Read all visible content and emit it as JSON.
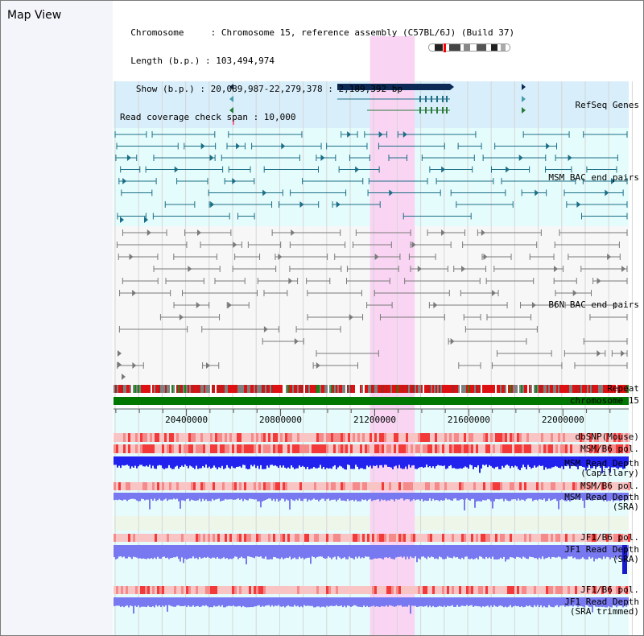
{
  "title": "Map View",
  "info": {
    "lines": [
      "  Chromosome     : Chromosome 15, reference assembly (C57BL/6J) (Build 37)",
      "  Length (b.p.) : 103,494,974",
      "   Show (b.p.) : 20,089,987-22,279,378 : 2,189,392 bp",
      "Read coverage check span : 10,000"
    ]
  },
  "tracks": {
    "refseq": {
      "label": "RefSeq Genes",
      "color": "#0000cc"
    },
    "msm_bac": {
      "label": "MSM BAC end pairs",
      "color": "#006f86"
    },
    "b6n_bac": {
      "label": "B6N BAC end pairs",
      "color": "#555555"
    },
    "repeat": {
      "label": "Repeat",
      "color": "#000000"
    },
    "chrom": {
      "label": "chromosome 15",
      "color": "#000000"
    },
    "dbsnp": {
      "label": "dbSNP(Mouse)",
      "color": "#444444"
    },
    "msm_b6_pol_1": {
      "label": "MSM/B6 pol.",
      "color": "#444444"
    },
    "msm_depth_cap": {
      "label": "MSM Read Depth\n(Capillary)",
      "color": "#444444"
    },
    "msm_b6_pol_2": {
      "label": "MSM/B6 pol.",
      "color": "#ff9900"
    },
    "msm_depth_sra": {
      "label": "MSM Read Depth\n(SRA)",
      "color": "#0000cc"
    },
    "jf1_b6_pol_1": {
      "label": "JF1/B6 pol.",
      "color": "#ff9900"
    },
    "jf1_depth_sra": {
      "label": "JF1 Read Depth\n(SRA)",
      "color": "#0000cc"
    },
    "jf1_b6_pol_2": {
      "label": "JF1/B6 pol.",
      "color": "#ff9900"
    },
    "jf1_depth_trim": {
      "label": "JF1 Read Depth\n(SRA trimmed)",
      "color": "#0000cc"
    }
  },
  "axis": {
    "ticks": [
      "20400000",
      "20800000",
      "21200000",
      "21600000",
      "22000000"
    ],
    "start": 20089987,
    "end": 22279378,
    "highlight": [
      21180000,
      21370000
    ]
  },
  "colors": {
    "highlight": "#f9d4f3",
    "refseq_bg": "#d8eefa",
    "msm_bg": "#e5fcfc",
    "b6n_bg": "#f7f7f8",
    "lower_bg": "#e6fcfc",
    "chromosome": "#007700",
    "depth_dark": "#2222ee",
    "depth_light": "#7878f0",
    "pol_red": "#f03a3a",
    "gene_dark": "#0c2a55",
    "msm_feature": "#1b6e86",
    "b6n_feature": "#7a7a7a"
  }
}
